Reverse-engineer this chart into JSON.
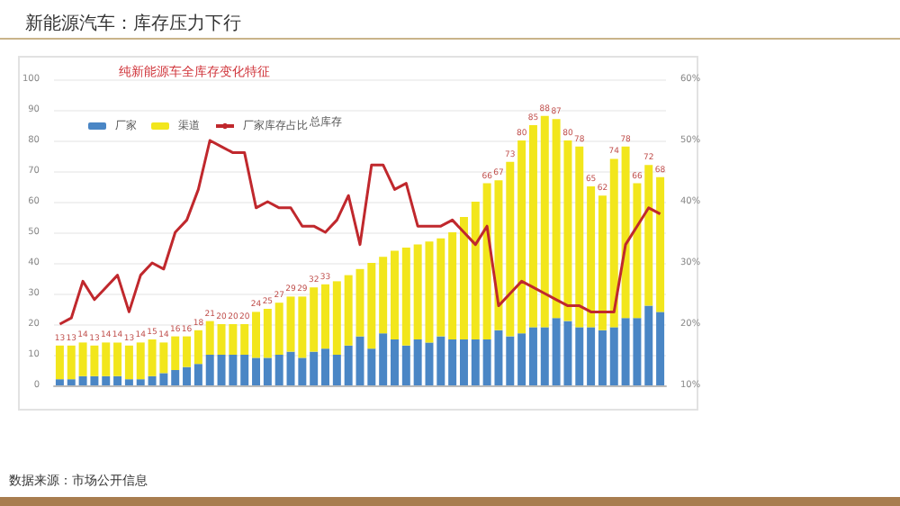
{
  "chart_data": {
    "type": "bar",
    "title": "新能源汽车：库存压力下行",
    "subtitle": "纯新能源车全库存变化特征",
    "categories": [
      null,
      null,
      null,
      null,
      null,
      null,
      null,
      null,
      null,
      null,
      null,
      null,
      null,
      null,
      null,
      null,
      null,
      null,
      null,
      null,
      null,
      null,
      null,
      null,
      null,
      null,
      null,
      null,
      null,
      null,
      null,
      null,
      null,
      null,
      null,
      null,
      null,
      null,
      null,
      null,
      null,
      null,
      null,
      null,
      null,
      null,
      null,
      null,
      null,
      null,
      null,
      null,
      null
    ],
    "stacked": true,
    "series": [
      {
        "name": "厂家",
        "color": "#4a86c5",
        "values": [
          2,
          2,
          3,
          3,
          3,
          3,
          2,
          2,
          3,
          4,
          5,
          6,
          7,
          10,
          10,
          10,
          10,
          9,
          9,
          10,
          11,
          9,
          11,
          12,
          10,
          13,
          16,
          12,
          17,
          15,
          13,
          15,
          14,
          16,
          15,
          15,
          15,
          15,
          18,
          16,
          17,
          19,
          19,
          22,
          21,
          19,
          19,
          18,
          19,
          22,
          22,
          26,
          24
        ]
      },
      {
        "name": "渠道",
        "color": "#f2e61c",
        "values": [
          11,
          11,
          11,
          10,
          11,
          11,
          11,
          12,
          12,
          10,
          11,
          10,
          11,
          11,
          10,
          10,
          10,
          15,
          16,
          17,
          18,
          20,
          21,
          21,
          24,
          23,
          22,
          28,
          25,
          29,
          32,
          31,
          33,
          32,
          35,
          40,
          45,
          51,
          49,
          57,
          63,
          66,
          69,
          65,
          59,
          59,
          46,
          44,
          55,
          56,
          44,
          46,
          44
        ]
      },
      {
        "name": "厂家库存占比",
        "type": "line",
        "axis": "y2",
        "color": "#c0282d",
        "values": [
          20,
          21,
          27,
          24,
          26,
          28,
          22,
          28,
          30,
          29,
          35,
          37,
          42,
          50,
          49,
          48,
          48,
          39,
          40,
          39,
          39,
          36,
          36,
          35,
          37,
          41,
          33,
          46,
          46,
          42,
          43,
          36,
          36,
          36,
          37,
          35,
          33,
          36,
          23,
          25,
          27,
          26,
          25,
          24,
          23,
          23,
          22,
          22,
          22,
          33,
          36,
          39,
          38
        ]
      }
    ],
    "totals": [
      "13",
      "13",
      "14",
      "13",
      "14",
      "14",
      "13",
      "14",
      "15",
      "14",
      "16",
      "16",
      "18",
      "21",
      "20",
      "20",
      "20",
      "24",
      "25",
      "27",
      "29",
      "29",
      "32",
      "33",
      null,
      null,
      null,
      null,
      null,
      null,
      null,
      null,
      null,
      null,
      null,
      null,
      null,
      "66",
      "67",
      "73",
      "80",
      "85",
      "88",
      "87",
      "80",
      "78",
      "65",
      "62",
      "74",
      "78",
      "66",
      "72",
      "68"
    ],
    "ylim": [
      0,
      100
    ],
    "yticks": [
      0,
      10,
      20,
      30,
      40,
      50,
      60,
      70,
      80,
      90,
      100
    ],
    "y2lim": [
      10,
      60
    ],
    "y2ticks": [
      {
        "value": 10,
        "label": "10%"
      },
      {
        "value": 20,
        "label": "20%"
      },
      {
        "value": 30,
        "label": "30%"
      },
      {
        "value": 40,
        "label": "40%"
      },
      {
        "value": 50,
        "label": "50%"
      },
      {
        "value": 60,
        "label": "60%"
      }
    ],
    "grid": "y",
    "legend": "top left",
    "marker": "none",
    "annotations": [
      "总库存",
      "数据来源：市场公开信息"
    ]
  }
}
